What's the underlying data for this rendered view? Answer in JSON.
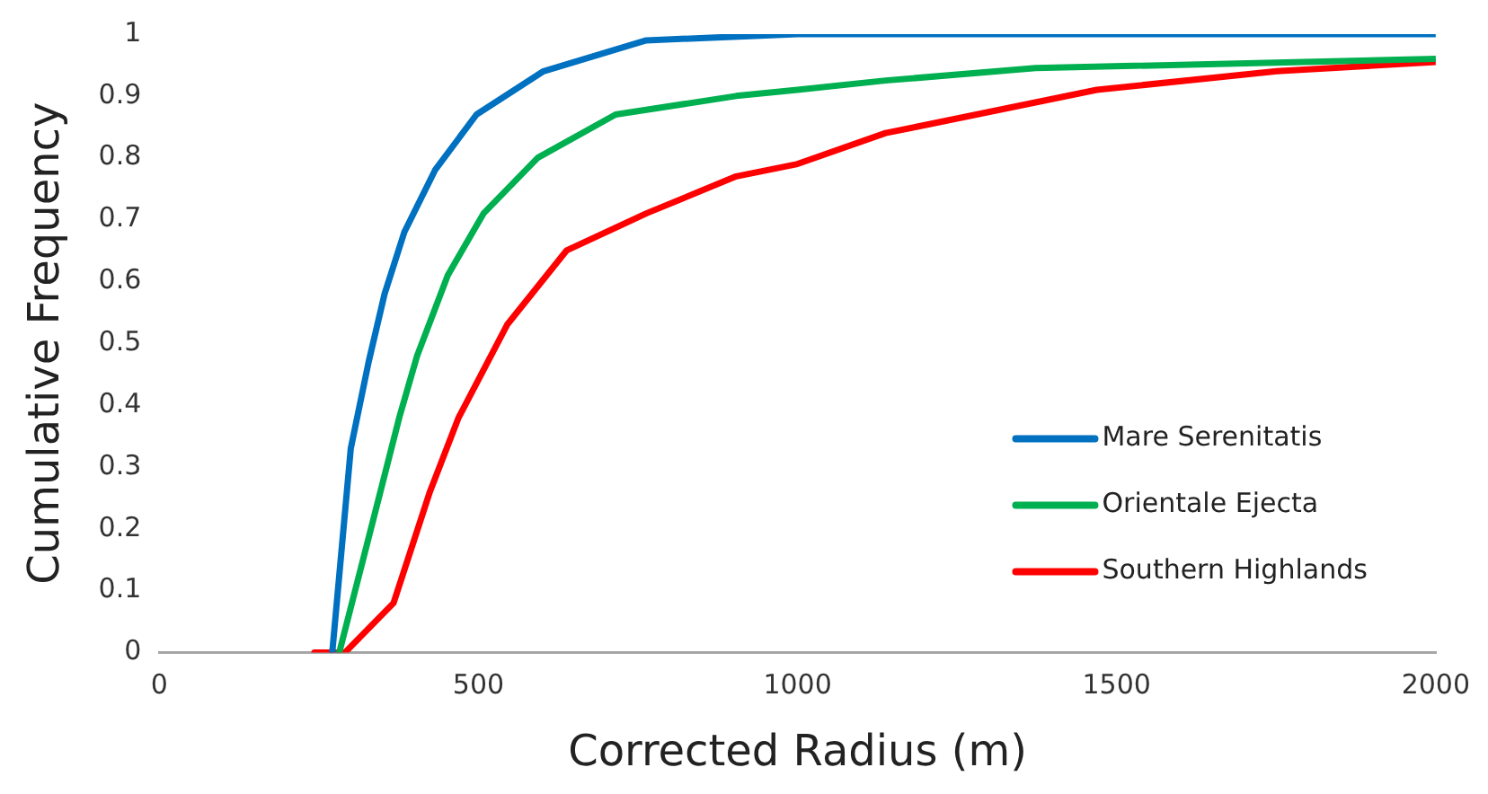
{
  "chart_data": {
    "type": "line",
    "xlabel": "Corrected Radius (m)",
    "ylabel": "Cumulative Frequency",
    "xlim": [
      0,
      2000
    ],
    "xticks": [
      0,
      500,
      1000,
      1500,
      2000
    ],
    "ylim": [
      0,
      1
    ],
    "yticks": [
      0,
      0.1,
      0.2,
      0.3,
      0.4,
      0.5,
      0.6,
      0.7,
      0.8,
      0.9,
      1
    ],
    "grid": false,
    "legend": "bottom right",
    "marker": "none",
    "line_style": "solid",
    "series": [
      {
        "name": "Mare Serenitatis",
        "color": "#0070c0",
        "x": [
          271,
          300,
          328,
          353,
          384,
          432,
          497,
          602,
          763,
          1000,
          2000
        ],
        "values": [
          0,
          0.33,
          0.47,
          0.58,
          0.68,
          0.78,
          0.87,
          0.94,
          0.99,
          1,
          1
        ]
      },
      {
        "name": "Orientale Ejecta",
        "color": "#00b050",
        "x": [
          282,
          339,
          376,
          404,
          452,
          508,
          593,
          715,
          904,
          1000,
          1138,
          1373,
          2000
        ],
        "values": [
          0,
          0.23,
          0.38,
          0.48,
          0.61,
          0.71,
          0.8,
          0.87,
          0.9,
          0.91,
          0.925,
          0.945,
          0.96
        ]
      },
      {
        "name": "Southern Highlands",
        "color": "#ff0000",
        "x": [
          243,
          291,
          367,
          424,
          469,
          545,
          638,
          763,
          904,
          1000,
          1138,
          1186,
          1469,
          1751,
          2000
        ],
        "values": [
          0,
          0,
          0.08,
          0.26,
          0.38,
          0.53,
          0.65,
          0.71,
          0.77,
          0.79,
          0.84,
          0.85,
          0.91,
          0.94,
          0.955
        ]
      }
    ]
  }
}
